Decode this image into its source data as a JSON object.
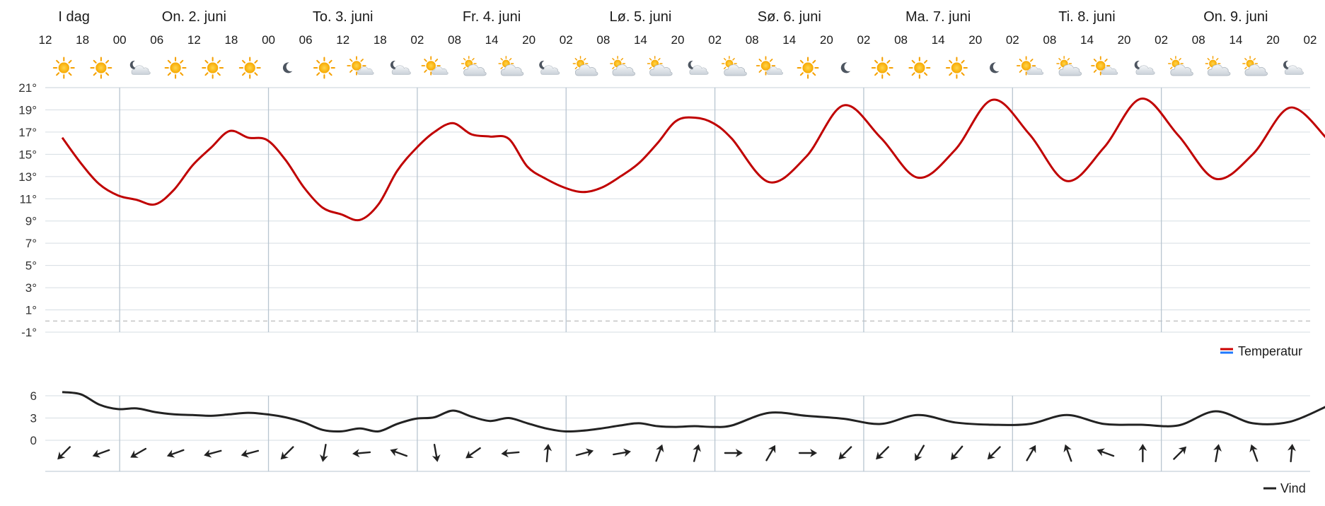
{
  "chart_data": {
    "type": "line",
    "days": [
      {
        "label": "I dag",
        "hours": [
          "12",
          "18",
          "00"
        ]
      },
      {
        "label": "On. 2. juni",
        "hours": [
          "06",
          "12",
          "18",
          "00"
        ]
      },
      {
        "label": "To. 3. juni",
        "hours": [
          "06",
          "12",
          "18",
          "02"
        ]
      },
      {
        "label": "Fr. 4. juni",
        "hours": [
          "08",
          "14",
          "20",
          "02"
        ]
      },
      {
        "label": "Lø. 5. juni",
        "hours": [
          "08",
          "14",
          "20",
          "02"
        ]
      },
      {
        "label": "Sø. 6. juni",
        "hours": [
          "08",
          "14",
          "20",
          "02"
        ]
      },
      {
        "label": "Ma. 7. juni",
        "hours": [
          "08",
          "14",
          "20",
          "02"
        ]
      },
      {
        "label": "Ti. 8. juni",
        "hours": [
          "08",
          "14",
          "20",
          "02"
        ]
      },
      {
        "label": "On. 9. juni",
        "hours": [
          "08",
          "14",
          "20",
          "02"
        ]
      }
    ],
    "x": [
      0,
      0.5,
      1,
      1.5,
      2,
      2.5,
      3,
      3.5,
      4,
      4.5,
      5,
      5.5,
      6,
      6.5,
      7,
      7.5,
      8,
      8.5,
      9,
      9.5,
      10,
      10.5,
      11,
      11.5,
      12,
      12.5,
      13,
      13.5,
      14,
      14.5,
      15,
      15.5,
      16,
      16.5,
      17,
      17.5,
      18,
      19,
      20,
      21,
      22,
      23,
      24,
      25,
      26,
      27,
      28,
      29,
      30,
      31,
      32,
      33,
      34
    ],
    "x_ticks": [
      "12",
      "18",
      "00",
      "06",
      "12",
      "18",
      "00",
      "06",
      "12",
      "18",
      "02",
      "08",
      "14",
      "20",
      "02",
      "08",
      "14",
      "20",
      "02",
      "08",
      "14",
      "20",
      "02",
      "08",
      "14",
      "20",
      "02",
      "08",
      "14",
      "20",
      "02",
      "08",
      "14",
      "20",
      "02"
    ],
    "series": [
      {
        "name": "Temperatur",
        "color": "#c00000",
        "values": [
          16.5,
          14.2,
          12.3,
          11.3,
          10.9,
          10.5,
          11.8,
          14.0,
          15.6,
          17.1,
          16.5,
          16.3,
          14.5,
          12.0,
          10.2,
          9.6,
          9.1,
          10.5,
          13.5,
          15.5,
          17.0,
          17.8,
          16.8,
          16.6,
          16.4,
          13.9,
          12.8,
          12.0,
          11.6,
          12.0,
          13.0,
          14.2,
          16.0,
          18.0,
          18.3,
          17.8,
          16.4,
          12.5,
          14.8,
          19.4,
          16.5,
          12.9,
          15.4,
          19.9,
          16.8,
          12.6,
          15.6,
          20.0,
          16.7,
          12.8,
          15.0,
          19.2,
          16.4
        ]
      },
      {
        "name": "Vind",
        "color": "#222222",
        "values": [
          6.5,
          6.2,
          4.8,
          4.2,
          4.3,
          3.8,
          3.5,
          3.4,
          3.3,
          3.5,
          3.7,
          3.5,
          3.1,
          2.4,
          1.4,
          1.2,
          1.6,
          1.2,
          2.2,
          2.9,
          3.1,
          4.0,
          3.2,
          2.6,
          3.0,
          2.3,
          1.6,
          1.2,
          1.3,
          1.6,
          2.0,
          2.3,
          1.9,
          1.8,
          1.9,
          1.8,
          2.0,
          3.7,
          3.3,
          2.9,
          2.2,
          3.4,
          2.4,
          2.1,
          2.2,
          3.4,
          2.2,
          2.1,
          2.0,
          3.9,
          2.3,
          2.5,
          4.6
        ]
      }
    ],
    "temp_ylim": [
      -1,
      21
    ],
    "temp_yticks": [
      "21°",
      "19°",
      "17°",
      "15°",
      "13°",
      "11°",
      "9°",
      "7°",
      "5°",
      "3°",
      "1°",
      "-1°"
    ],
    "wind_ylim": [
      0,
      6
    ],
    "wind_yticks": [
      "6",
      "3",
      "0"
    ],
    "weather_icons": [
      "sun",
      "sun",
      "partly-cloudy-night",
      "sun",
      "sun",
      "sun",
      "moon",
      "sun",
      "partly-cloudy-day",
      "partly-cloudy-night",
      "partly-cloudy-day",
      "cloudy-sun",
      "cloudy-sun",
      "partly-cloudy-night",
      "cloudy-sun",
      "cloudy-sun",
      "cloudy-sun",
      "partly-cloudy-night",
      "cloudy-sun",
      "partly-cloudy-day",
      "sun",
      "moon",
      "sun",
      "sun",
      "sun",
      "moon",
      "partly-cloudy-day",
      "cloudy-sun",
      "partly-cloudy-day",
      "partly-cloudy-night",
      "cloudy-sun",
      "cloudy-sun",
      "cloudy-sun",
      "partly-cloudy-night"
    ],
    "wind_directions_deg": [
      225,
      250,
      240,
      250,
      255,
      255,
      225,
      190,
      265,
      290,
      170,
      235,
      265,
      5,
      75,
      80,
      20,
      15,
      90,
      30,
      90,
      225,
      225,
      210,
      220,
      225,
      30,
      340,
      290,
      0,
      45,
      10,
      340,
      5
    ],
    "legend": [
      {
        "name": "Temperatur",
        "colors": [
          "#cc0000",
          "#1e78ff"
        ]
      },
      {
        "name": "Vind",
        "colors": [
          "#222222"
        ]
      }
    ],
    "grid": true,
    "colors": {
      "grid": "#d6dde3",
      "day_divider": "#b8c5d0",
      "zero_line": "#bbbbbb"
    }
  }
}
